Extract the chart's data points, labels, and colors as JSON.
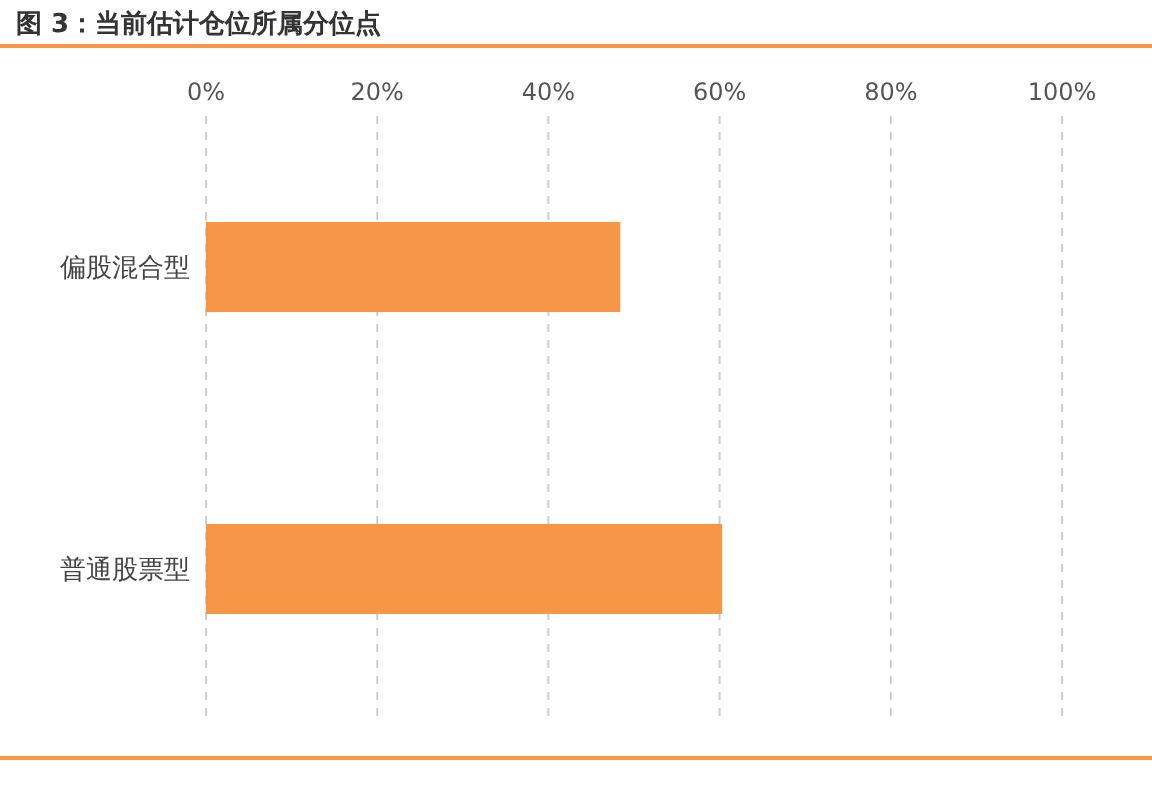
{
  "chart_data": {
    "type": "bar",
    "orientation": "horizontal",
    "title": "图 3：当前估计仓位所属分位点",
    "categories": [
      "偏股混合型",
      "普通股票型"
    ],
    "values": [
      48.4,
      60.3
    ],
    "color": "#f79646",
    "xlim": [
      0,
      100
    ],
    "xticks": [
      {
        "value": 0,
        "label": "0%"
      },
      {
        "value": 20,
        "label": "20%"
      },
      {
        "value": 40,
        "label": "40%"
      },
      {
        "value": 60,
        "label": "60%"
      },
      {
        "value": 80,
        "label": "80%"
      },
      {
        "value": 100,
        "label": "100%"
      }
    ],
    "grid": "x",
    "legend": false
  }
}
